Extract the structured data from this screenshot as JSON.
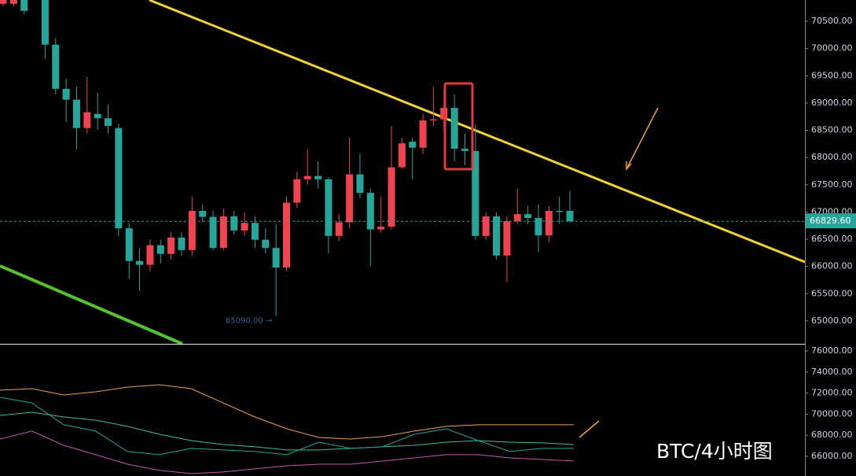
{
  "caption": "BTC/4小时图",
  "chart_data": [
    {
      "type": "candlestick",
      "open": [
        70820,
        70820,
        70890,
        null,
        70890,
        70070,
        69260,
        69060,
        68540,
        68800,
        68720,
        68540,
        66700,
        66100,
        66030,
        66390,
        66230,
        66530,
        66300,
        67020,
        66910,
        66340,
        66920,
        66660,
        66800,
        66490,
        66340,
        65980,
        67170,
        67600,
        67660,
        67600,
        66560,
        66810,
        67690,
        67350,
        66680,
        66730,
        67820,
        68290,
        68180,
        68680,
        68700,
        68910,
        68160,
        68120,
        66560,
        66920,
        66200,
        66830,
        66960,
        66890,
        66570,
        67020,
        67020
      ],
      "high": [
        70890,
        70890,
        70890,
        null,
        70890,
        70190,
        69450,
        69300,
        69480,
        69190,
        68970,
        68620,
        66800,
        66340,
        66490,
        66490,
        66630,
        66630,
        67280,
        67140,
        67020,
        67060,
        67020,
        66990,
        66920,
        66700,
        66780,
        67280,
        67740,
        68150,
        67930,
        67640,
        66960,
        68360,
        68080,
        67430,
        67280,
        68580,
        68360,
        68360,
        68800,
        69300,
        69230,
        69160,
        68440,
        68610,
        66990,
        66990,
        66920,
        67430,
        67110,
        67140,
        67110,
        67280,
        67380
      ],
      "low": [
        70770,
        70770,
        70630,
        null,
        69810,
        69160,
        68650,
        68150,
        68440,
        68510,
        68440,
        66560,
        65770,
        65550,
        65910,
        66050,
        66130,
        66200,
        66200,
        66820,
        66300,
        66300,
        66590,
        66560,
        66340,
        66240,
        65090,
        65910,
        67070,
        67500,
        67430,
        66240,
        66470,
        66700,
        67250,
        66010,
        66620,
        66680,
        67790,
        67600,
        68060,
        68580,
        68510,
        67930,
        67860,
        66490,
        66490,
        66130,
        65720,
        66780,
        66780,
        66270,
        66440,
        66780,
        66800
      ],
      "close": [
        70890,
        70890,
        70690,
        null,
        70070,
        69260,
        69060,
        68540,
        68830,
        68720,
        68580,
        66700,
        66100,
        66030,
        66390,
        66230,
        66530,
        66300,
        67020,
        66910,
        66340,
        66920,
        66660,
        66800,
        66490,
        66340,
        65980,
        67170,
        67600,
        67660,
        67600,
        66560,
        66810,
        67690,
        67350,
        66680,
        66730,
        67820,
        68260,
        68180,
        68680,
        68700,
        68910,
        68160,
        68120,
        66560,
        66920,
        66200,
        66830,
        66960,
        66890,
        66570,
        67020,
        67000,
        66829.6
      ],
      "up_color": "#f0434f",
      "down_color": "#26a69a",
      "ylim": [
        64580,
        70890
      ],
      "yticks": [
        {
          "value": 65000,
          "label": "65000.00"
        },
        {
          "value": 65500,
          "label": "65500.00"
        },
        {
          "value": 66000,
          "label": "66000.00"
        },
        {
          "value": 66500,
          "label": "66500.00"
        },
        {
          "value": 67000,
          "label": "67000.00"
        },
        {
          "value": 67500,
          "label": "67500.00"
        },
        {
          "value": 68000,
          "label": "68000.00"
        },
        {
          "value": 68500,
          "label": "68500.00"
        },
        {
          "value": 69000,
          "label": "69000.00"
        },
        {
          "value": 69500,
          "label": "69500.00"
        },
        {
          "value": 70000,
          "label": "70000.00"
        },
        {
          "value": 70500,
          "label": "70500.00"
        }
      ],
      "last_price": {
        "value": 66829.6,
        "label": "66829.60"
      },
      "low_marker": {
        "value": 65090,
        "label": "65090.00 →"
      }
    },
    {
      "type": "line",
      "ylim": [
        64130,
        76600
      ],
      "yticks": [
        {
          "value": 66000,
          "label": "66000.00"
        },
        {
          "value": 68000,
          "label": "68000.00"
        },
        {
          "value": 70000,
          "label": "70000.00"
        },
        {
          "value": 72000,
          "label": "72000.00"
        },
        {
          "value": 74000,
          "label": "74000.00"
        },
        {
          "value": 76000,
          "label": "76000.00"
        }
      ],
      "series": [
        {
          "color": "#e8a15a",
          "values": [
            72270,
            72420,
            71820,
            72120,
            72570,
            72790,
            72420,
            71070,
            69730,
            68610,
            67790,
            67640,
            67870,
            68390,
            68840,
            68990,
            68990,
            68990,
            68990
          ]
        },
        {
          "color": "#3fbf9f",
          "values": [
            69880,
            70180,
            69730,
            69430,
            68840,
            68090,
            67490,
            67120,
            66900,
            66600,
            66600,
            66750,
            66900,
            67040,
            67340,
            67490,
            67340,
            67270,
            67120
          ]
        },
        {
          "color": "#c25bb0",
          "values": [
            67640,
            68390,
            67040,
            66150,
            65250,
            64660,
            64360,
            64510,
            64810,
            65100,
            65250,
            65250,
            65550,
            65850,
            66150,
            66150,
            65850,
            65700,
            65550
          ]
        },
        {
          "color": "#26a69a",
          "values": [
            71600,
            71070,
            68990,
            68390,
            66450,
            66150,
            66750,
            66600,
            66450,
            66150,
            67340,
            66750,
            66900,
            68090,
            68610,
            67490,
            66450,
            66750,
            66750
          ]
        }
      ]
    }
  ]
}
